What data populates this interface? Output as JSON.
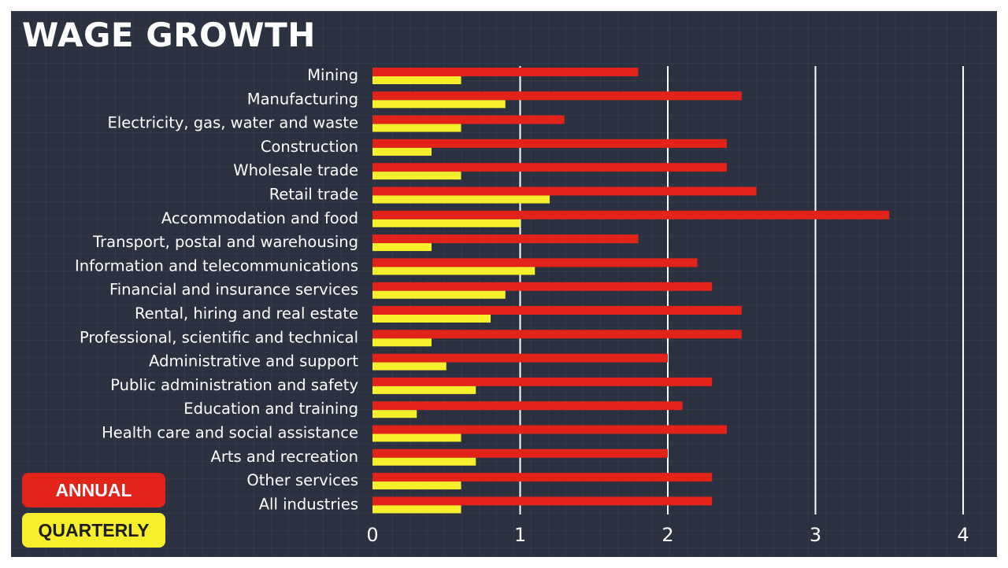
{
  "chart_data": {
    "type": "bar",
    "orientation": "horizontal",
    "title": "WAGE GROWTH",
    "categories": [
      "Mining",
      "Manufacturing",
      "Electricity, gas, water and waste",
      "Construction",
      "Wholesale trade",
      "Retail trade",
      "Accommodation and food",
      "Transport, postal and warehousing",
      "Information and telecommunications",
      "Financial and insurance services",
      "Rental, hiring and real estate",
      "Professional, scientific and technical",
      "Administrative and support",
      "Public administration and safety",
      "Education and training",
      "Health care and social assistance",
      "Arts and recreation",
      "Other services",
      "All industries"
    ],
    "series": [
      {
        "name": "ANNUAL",
        "color": "#e2231a",
        "values": [
          1.8,
          2.5,
          1.3,
          2.4,
          2.4,
          2.6,
          3.5,
          1.8,
          2.2,
          2.3,
          2.5,
          2.5,
          2.0,
          2.3,
          2.1,
          2.4,
          2.0,
          2.3,
          2.3
        ]
      },
      {
        "name": "QUARTERLY",
        "color": "#f7ef2c",
        "values": [
          0.6,
          0.9,
          0.6,
          0.4,
          0.6,
          1.2,
          1.0,
          0.4,
          1.1,
          0.9,
          0.8,
          0.4,
          0.5,
          0.7,
          0.3,
          0.6,
          0.7,
          0.6,
          0.6
        ]
      }
    ],
    "xlim": [
      0,
      4
    ],
    "xticks": [
      "0",
      "1",
      "2",
      "3",
      "4"
    ],
    "grid": true,
    "legend": "bottom-left",
    "xlabel": "",
    "ylabel": ""
  }
}
